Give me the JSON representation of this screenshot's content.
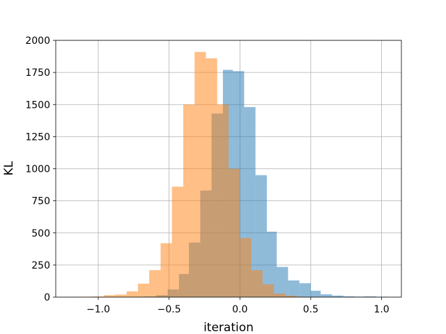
{
  "chart_data": {
    "type": "histogram",
    "xlabel": "iteration",
    "ylabel": "KL",
    "xlim": [
      -1.3,
      1.14
    ],
    "ylim": [
      0,
      2000
    ],
    "grid": true,
    "legend": "none",
    "x_ticks": [
      -1.0,
      -0.5,
      0.0,
      0.5,
      1.0
    ],
    "x_tick_labels": [
      "−1.0",
      "−0.5",
      "0.0",
      "0.5",
      "1.0"
    ],
    "y_ticks": [
      0,
      250,
      500,
      750,
      1000,
      1250,
      1500,
      1750,
      2000
    ],
    "y_tick_labels": [
      "0",
      "250",
      "500",
      "750",
      "1000",
      "1250",
      "1500",
      "1750",
      "2000"
    ],
    "series": [
      {
        "color": "#1f77b4",
        "opacity": 0.5,
        "bins": [
          [
            -0.75,
            -0.67,
            3
          ],
          [
            -0.67,
            -0.59,
            5
          ],
          [
            -0.59,
            -0.51,
            15
          ],
          [
            -0.51,
            -0.43,
            60
          ],
          [
            -0.43,
            -0.36,
            180
          ],
          [
            -0.36,
            -0.28,
            425
          ],
          [
            -0.28,
            -0.2,
            830
          ],
          [
            -0.2,
            -0.12,
            1430
          ],
          [
            -0.12,
            -0.05,
            1770
          ],
          [
            -0.05,
            0.03,
            1760
          ],
          [
            0.03,
            0.11,
            1480
          ],
          [
            0.11,
            0.19,
            950
          ],
          [
            0.19,
            0.26,
            510
          ],
          [
            0.26,
            0.34,
            235
          ],
          [
            0.34,
            0.42,
            130
          ],
          [
            0.42,
            0.5,
            108
          ],
          [
            0.5,
            0.57,
            50
          ],
          [
            0.57,
            0.65,
            22
          ],
          [
            0.65,
            0.73,
            12
          ],
          [
            0.73,
            0.81,
            6
          ],
          [
            0.81,
            0.88,
            4
          ],
          [
            0.88,
            0.96,
            6
          ],
          [
            0.96,
            1.04,
            3
          ]
        ]
      },
      {
        "color": "#ff7f0e",
        "opacity": 0.5,
        "bins": [
          [
            -1.2,
            -1.12,
            2
          ],
          [
            -1.12,
            -1.04,
            3
          ],
          [
            -1.04,
            -0.96,
            5
          ],
          [
            -0.96,
            -0.88,
            15
          ],
          [
            -0.88,
            -0.8,
            20
          ],
          [
            -0.8,
            -0.72,
            45
          ],
          [
            -0.72,
            -0.64,
            105
          ],
          [
            -0.64,
            -0.56,
            210
          ],
          [
            -0.56,
            -0.48,
            420
          ],
          [
            -0.48,
            -0.4,
            860
          ],
          [
            -0.4,
            -0.32,
            1500
          ],
          [
            -0.32,
            -0.24,
            1910
          ],
          [
            -0.24,
            -0.16,
            1860
          ],
          [
            -0.16,
            -0.08,
            1500
          ],
          [
            -0.08,
            0.0,
            1000
          ],
          [
            0.0,
            0.08,
            460
          ],
          [
            0.08,
            0.16,
            210
          ],
          [
            0.16,
            0.24,
            100
          ],
          [
            0.24,
            0.32,
            28
          ],
          [
            0.32,
            0.4,
            12
          ],
          [
            0.4,
            0.48,
            4
          ],
          [
            0.48,
            0.56,
            2
          ]
        ]
      }
    ]
  }
}
